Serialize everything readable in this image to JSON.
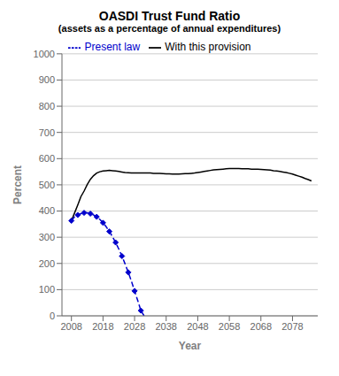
{
  "chart_data": {
    "type": "line",
    "title": "OASDI Trust Fund Ratio",
    "subtitle": "(assets as a percentage of annual expenditures)",
    "x_label": "Year",
    "y_label": "Percent",
    "xlim": [
      2005,
      2086
    ],
    "xticks": [
      2008,
      2018,
      2028,
      2038,
      2048,
      2058,
      2068,
      2078
    ],
    "ylim": [
      0,
      1000
    ],
    "yticks": [
      0,
      100,
      200,
      300,
      400,
      500,
      600,
      700,
      800,
      900,
      1000
    ],
    "grid": true,
    "legend": "top",
    "x": [
      2008,
      2009,
      2010,
      2011,
      2012,
      2013,
      2014,
      2015,
      2016,
      2017,
      2018,
      2019,
      2020,
      2021,
      2022,
      2023,
      2024,
      2025,
      2026,
      2027,
      2028,
      2029,
      2030,
      2031,
      2032,
      2033,
      2034,
      2035,
      2036,
      2037,
      2038,
      2039,
      2040,
      2041,
      2042,
      2043,
      2044,
      2045,
      2046,
      2047,
      2048,
      2049,
      2050,
      2051,
      2052,
      2053,
      2054,
      2055,
      2056,
      2057,
      2058,
      2059,
      2060,
      2061,
      2062,
      2063,
      2064,
      2065,
      2066,
      2067,
      2068,
      2069,
      2070,
      2071,
      2072,
      2073,
      2074,
      2075,
      2076,
      2077,
      2078,
      2079,
      2080,
      2081,
      2082,
      2083,
      2084
    ],
    "series": [
      {
        "name": "With this provision",
        "color": "#000000",
        "line_style": "solid",
        "values": [
          363,
          393,
          423,
          455,
          476,
          501,
          521,
          535,
          545,
          550,
          553,
          554,
          555,
          554,
          553,
          551,
          549,
          547,
          546,
          545,
          545,
          545,
          545,
          545,
          545,
          545,
          544,
          544,
          544,
          543,
          542,
          542,
          541,
          541,
          541,
          542,
          543,
          543,
          544,
          545,
          547,
          549,
          551,
          553,
          555,
          557,
          558,
          559,
          560,
          561,
          562,
          562,
          562,
          562,
          561,
          561,
          561,
          560,
          560,
          560,
          559,
          558,
          557,
          556,
          554,
          553,
          551,
          549,
          547,
          544,
          541,
          537,
          533,
          529,
          524,
          520,
          515
        ]
      },
      {
        "name": "Present law",
        "color": "#0000cc",
        "line_style": "dashed",
        "marker": "diamond",
        "values": [
          363,
          378,
          385,
          390,
          393,
          393,
          390,
          385,
          378,
          368,
          355,
          340,
          322,
          302,
          280,
          255,
          228,
          198,
          166,
          132,
          95,
          58,
          20,
          0,
          null,
          null,
          null,
          null,
          null,
          null,
          null,
          null,
          null,
          null,
          null,
          null,
          null,
          null,
          null,
          null,
          null,
          null,
          null,
          null,
          null,
          null,
          null,
          null,
          null,
          null,
          null,
          null,
          null,
          null,
          null,
          null,
          null,
          null,
          null,
          null,
          null,
          null,
          null,
          null,
          null,
          null,
          null,
          null,
          null,
          null,
          null,
          null,
          null,
          null,
          null,
          null,
          null
        ]
      }
    ]
  }
}
